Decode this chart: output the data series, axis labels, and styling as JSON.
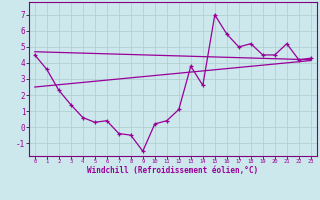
{
  "xlabel": "Windchill (Refroidissement éolien,°C)",
  "background_color": "#cce8ec",
  "grid_color": "#aacccc",
  "line_color": "#990099",
  "spine_color": "#800080",
  "xlim": [
    -0.5,
    23.5
  ],
  "ylim": [
    -1.8,
    7.8
  ],
  "yticks": [
    -1,
    0,
    1,
    2,
    3,
    4,
    5,
    6,
    7
  ],
  "xticks": [
    0,
    1,
    2,
    3,
    4,
    5,
    6,
    7,
    8,
    9,
    10,
    11,
    12,
    13,
    14,
    15,
    16,
    17,
    18,
    19,
    20,
    21,
    22,
    23
  ],
  "main_x": [
    0,
    1,
    2,
    3,
    4,
    5,
    6,
    7,
    8,
    9,
    10,
    11,
    12,
    13,
    14,
    15,
    16,
    17,
    18,
    19,
    20,
    21,
    22,
    23
  ],
  "main_y": [
    4.5,
    3.6,
    2.3,
    1.4,
    0.6,
    0.3,
    0.4,
    -0.4,
    -0.5,
    -1.5,
    0.2,
    0.4,
    1.1,
    3.8,
    2.6,
    7.0,
    5.8,
    5.0,
    5.2,
    4.5,
    4.5,
    5.2,
    4.2,
    4.3
  ],
  "trend1_x": [
    0,
    23
  ],
  "trend1_y": [
    2.5,
    4.15
  ],
  "trend2_x": [
    0,
    23
  ],
  "trend2_y": [
    4.7,
    4.2
  ]
}
